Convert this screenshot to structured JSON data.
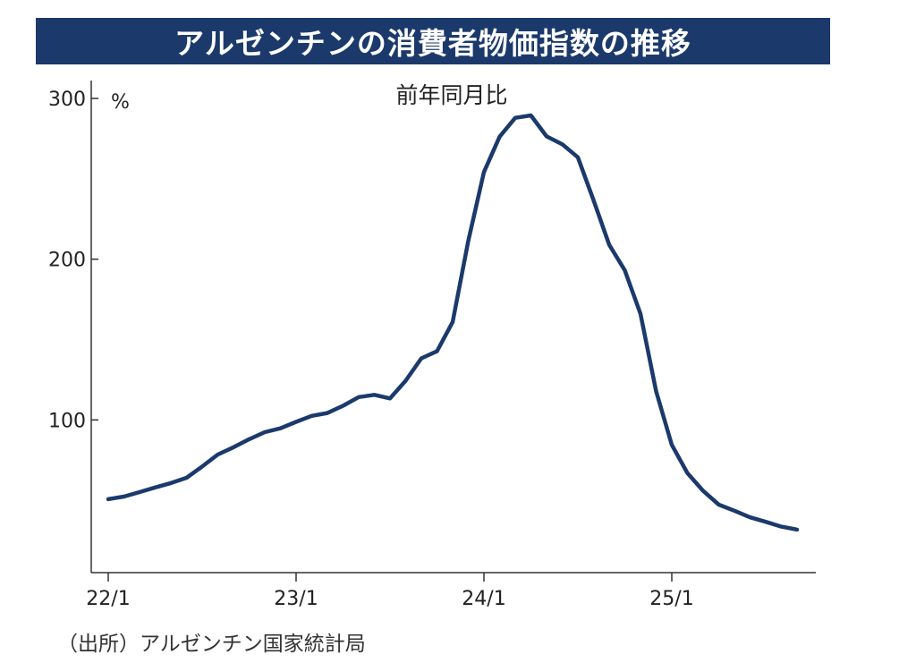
{
  "title": "アルゼンチンの消費者物価指数の推移",
  "source": "（出所）アルゼンチン国家統計局",
  "colors": {
    "title_bg": "#1b3a6b",
    "line": "#1b3a6b",
    "axis": "#333333"
  },
  "chart_data": {
    "type": "line",
    "title": "アルゼンチンの消費者物価指数の推移",
    "subtitle": "前年同月比",
    "ylabel": "%",
    "xlabel": "",
    "ylim": [
      0,
      300
    ],
    "yticks": [
      100,
      200,
      300
    ],
    "xtick_labels": [
      "22/1",
      "23/1",
      "24/1",
      "25/1"
    ],
    "x_start": "2022-01",
    "grid": false,
    "series": [
      {
        "values": [
          50.7,
          52.3,
          55.1,
          58.0,
          60.7,
          64.0,
          71.0,
          78.5,
          83.0,
          88.0,
          92.4,
          94.8,
          98.8,
          102.5,
          104.3,
          108.8,
          114.2,
          115.6,
          113.4,
          124.4,
          138.3,
          142.7,
          160.9,
          211.4,
          254.2,
          276.2,
          287.9,
          289.4,
          276.4,
          271.5,
          263.4,
          236.7,
          209.0,
          193.0,
          166.0,
          117.8,
          84.5,
          66.9,
          55.9,
          47.3,
          43.5,
          39.4,
          36.6,
          33.6,
          31.8
        ]
      }
    ]
  }
}
